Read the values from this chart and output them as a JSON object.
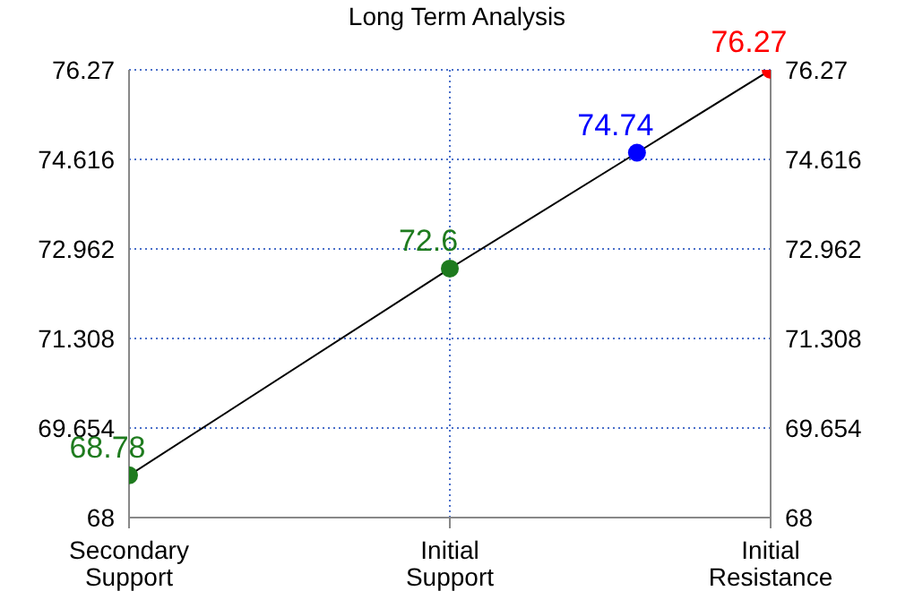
{
  "chart_data": {
    "type": "line",
    "title": "Long Term Analysis",
    "categories": [
      "Secondary Support",
      null,
      null,
      null,
      null,
      null,
      null,
      null,
      null,
      null,
      null,
      null,
      "Initial Support",
      null,
      null,
      null,
      null,
      null,
      null,
      null,
      null,
      null,
      null,
      null,
      "Initial Resistance"
    ],
    "series": [
      {
        "color": "#000000",
        "colors": [
          "#1e7b1e",
          null,
          null,
          null,
          null,
          null,
          null,
          null,
          null,
          null,
          null,
          null,
          "#1e7b1e",
          null,
          null,
          null,
          null,
          null,
          null,
          "#0000ff",
          null,
          null,
          null,
          null,
          "#ff0000"
        ],
        "values": [
          68.78,
          null,
          null,
          null,
          null,
          null,
          null,
          null,
          null,
          null,
          null,
          null,
          72.6,
          null,
          null,
          null,
          null,
          null,
          null,
          74.74,
          null,
          null,
          null,
          null,
          76.27
        ]
      }
    ],
    "ylim": [
      68,
      76.27
    ],
    "yticks": [
      68,
      69.654,
      71.308,
      72.962,
      74.616,
      76.27
    ],
    "y2lim": [
      68,
      76.27
    ],
    "y2ticks": [
      68,
      69.654,
      71.308,
      72.962,
      74.616,
      76.27
    ],
    "grid": true,
    "marker": "circle",
    "line_style": "solid",
    "data_labels": true
  }
}
